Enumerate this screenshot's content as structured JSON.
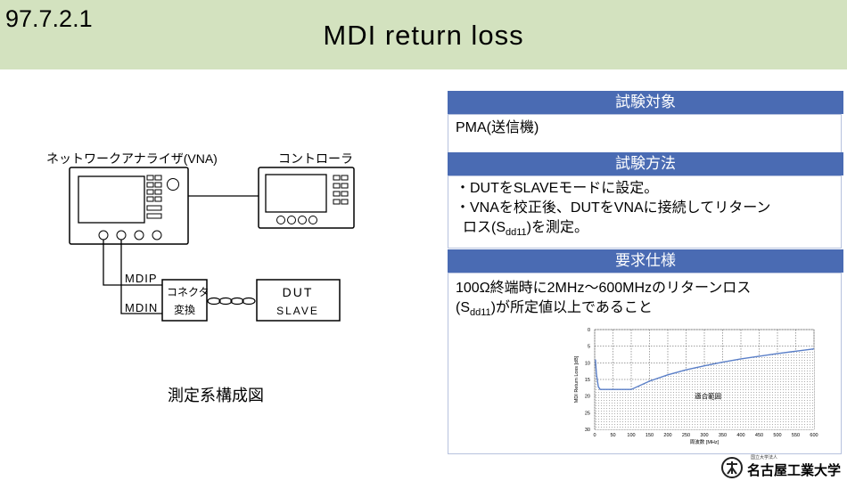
{
  "header": {
    "section_number": "97.7.2.1",
    "title": "MDI return loss"
  },
  "diagram": {
    "vna_label": "ネットワークアナライザ(VNA)",
    "controller_label": "コントローラ",
    "mdip_label": "MDIP",
    "mdin_label": "MDIN",
    "connector_label_line1": "コネクタ",
    "connector_label_line2": "変換",
    "dut_label_line1": "DUT",
    "dut_label_line2": "SLAVE",
    "caption": "測定系構成図"
  },
  "panel": {
    "target_heading": "試験対象",
    "target_text": "PMA(送信機)",
    "method_heading": "試験方法",
    "method_line1": "・DUTをSLAVEモードに設定。",
    "method_line2": "・VNAを校正後、DUTをVNAに接続してリターン",
    "method_line3": "ロス(S",
    "method_line3_sub": "dd11",
    "method_line3_end": ")を測定。",
    "requirement_heading": "要求仕様",
    "requirement_line1": "100Ω終端時に2MHz～600MHzのリターンロス",
    "requirement_line2": "(S",
    "requirement_line2_sub": "dd11",
    "requirement_line2_end": ")が所定値以上であること"
  },
  "chart_data": {
    "type": "line",
    "title": "",
    "xlabel": "周波数 [MHz]",
    "ylabel": "MDI Return Loss [dB]",
    "xlim": [
      0,
      600
    ],
    "ylim": [
      0,
      30
    ],
    "y_inverted": true,
    "x_ticks": [
      "0",
      "50",
      "100",
      "150",
      "200",
      "250",
      "300",
      "350",
      "400",
      "450",
      "500",
      "550",
      "600"
    ],
    "y_ticks": [
      "0",
      "5",
      "10",
      "15",
      "20",
      "25",
      "30"
    ],
    "grid": true,
    "series": [
      {
        "x": [
          2,
          5,
          10,
          15,
          20,
          50,
          100,
          150,
          200,
          250,
          300,
          350,
          400,
          450,
          500,
          550,
          600
        ],
        "y": [
          9.0,
          13.5,
          17.2,
          18.0,
          18.0,
          18.0,
          18.0,
          15.5,
          13.6,
          12.1,
          10.9,
          9.8,
          8.8,
          8.0,
          7.2,
          6.5,
          5.8
        ]
      }
    ],
    "region_label": "適合範囲"
  },
  "logo": {
    "text": "名古屋工業大学",
    "subtext": "国立大学法人"
  }
}
